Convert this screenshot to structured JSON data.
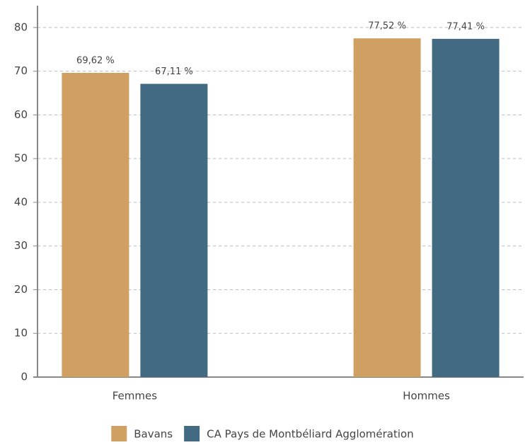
{
  "chart_data": {
    "type": "bar",
    "categories": [
      "Femmes",
      "Hommes"
    ],
    "series": [
      {
        "name": "Bavans",
        "color": "#cfa062",
        "values": [
          69.62,
          77.52
        ],
        "value_labels": [
          "69,62 %",
          "77,52 %"
        ]
      },
      {
        "name": "CA Pays de Montbéliard Agglomération",
        "color": "#426a82",
        "values": [
          67.11,
          77.41
        ],
        "value_labels": [
          "67,11 %",
          "77,41 %"
        ]
      }
    ],
    "ylim": [
      0,
      85
    ],
    "yticks": [
      0,
      10,
      20,
      30,
      40,
      50,
      60,
      70,
      80
    ],
    "grid": true,
    "legend": "bottom"
  }
}
